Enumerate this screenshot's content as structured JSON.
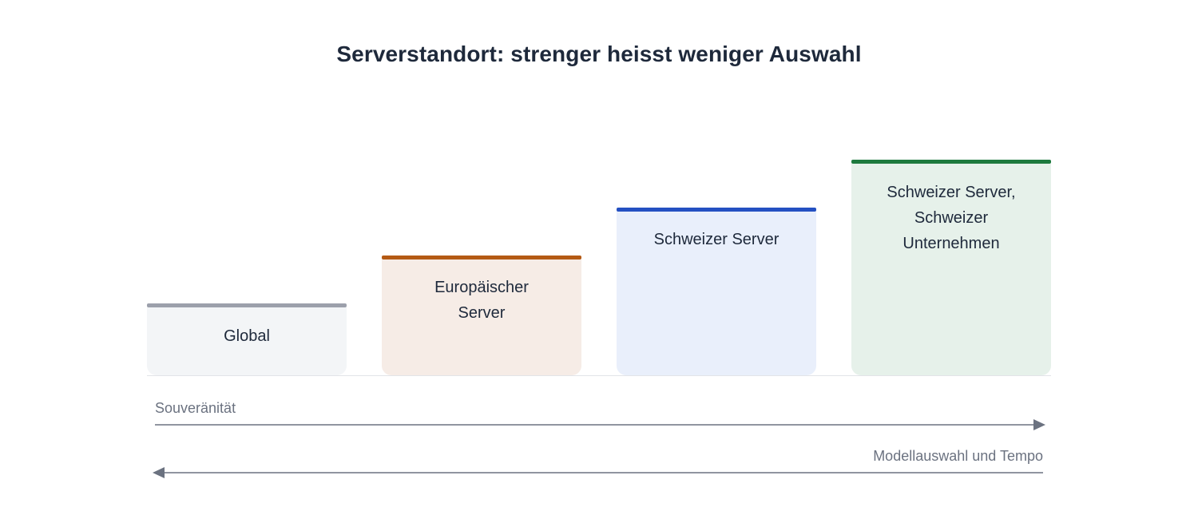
{
  "title": "Serverstandort: strenger heisst weniger Auswahl",
  "levels": [
    {
      "label": "Global",
      "color": "#9ca0ab",
      "fill": "#f3f5f7"
    },
    {
      "label": "Europäischer\nServer",
      "color": "#b45a14",
      "fill": "#f6ece6"
    },
    {
      "label": "Schweizer Server",
      "color": "#2450c2",
      "fill": "#e9effb"
    },
    {
      "label": "Schweizer Server,\nSchweizer\nUnternehmen",
      "color": "#1d7a3e",
      "fill": "#e6f1ea"
    }
  ],
  "axes": [
    {
      "label": "Souveränität",
      "direction": "right"
    },
    {
      "label": "Modellauswahl und Tempo",
      "direction": "left"
    }
  ]
}
